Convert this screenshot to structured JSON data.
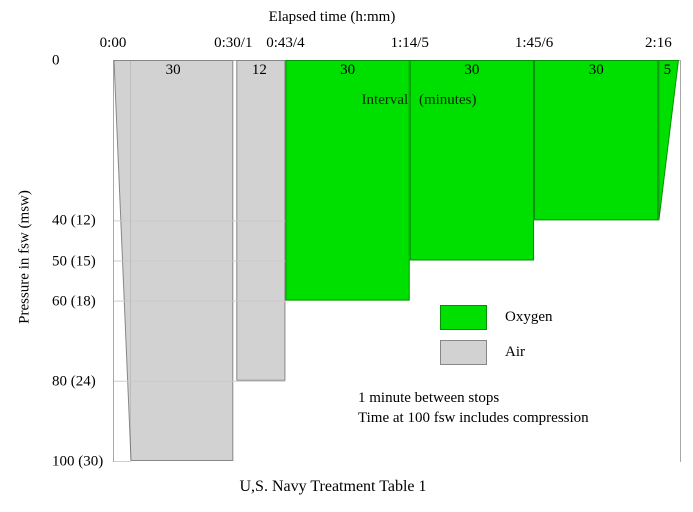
{
  "chart_data": {
    "type": "area",
    "title": "U,S. Navy Treatment Table 1",
    "xlabel": "Elapsed time (h:mm)",
    "ylabel": "Pressure in fsw (msw)",
    "interval_heading": "Interval (minutes)",
    "descent_minutes": 4.5,
    "x_axis": {
      "unit": "minutes",
      "range": [
        0,
        141
      ],
      "ticks": [
        {
          "label": "0:00",
          "min": 0
        },
        {
          "label": "0:30/1",
          "min": 30
        },
        {
          "label": "0:43/4",
          "min": 43
        },
        {
          "label": "1:14/5",
          "min": 74
        },
        {
          "label": "1:45/6",
          "min": 105
        },
        {
          "label": "2:16",
          "min": 136
        }
      ]
    },
    "y_axis": {
      "unit": "fsw",
      "range": [
        0,
        100
      ],
      "ticks": [
        {
          "label": "0",
          "fsw": 0
        },
        {
          "label": "40 (12)",
          "fsw": 40
        },
        {
          "label": "50 (15)",
          "fsw": 50
        },
        {
          "label": "60 (18)",
          "fsw": 60
        },
        {
          "label": "80 (24)",
          "fsw": 80
        },
        {
          "label": "100 (30)",
          "fsw": 100
        }
      ]
    },
    "segments": [
      {
        "gas": "air",
        "label": "30",
        "start_min": 0,
        "end_min": 30,
        "depth_fsw": 100,
        "shape": "descent-flat"
      },
      {
        "gas": "air",
        "label": "12",
        "start_min": 30,
        "end_min": 43,
        "depth_fsw": 80,
        "shape": "flat"
      },
      {
        "gas": "oxygen",
        "label": "30",
        "start_min": 43,
        "end_min": 74,
        "depth_fsw": 60,
        "shape": "flat"
      },
      {
        "gas": "oxygen",
        "label": "30",
        "start_min": 74,
        "end_min": 105,
        "depth_fsw": 50,
        "shape": "flat"
      },
      {
        "gas": "oxygen",
        "label": "30",
        "start_min": 105,
        "end_min": 136,
        "depth_fsw": 40,
        "shape": "flat"
      },
      {
        "gas": "oxygen",
        "label": "5",
        "start_min": 136,
        "end_min": 141,
        "depth_fsw": 40,
        "shape": "ascent"
      }
    ],
    "legend": [
      {
        "label": "Oxygen",
        "key": "oxygen",
        "color": "#00e000"
      },
      {
        "label": "Air",
        "key": "air",
        "color": "#d2d2d2"
      }
    ],
    "annotations": [
      "1 minute between stops",
      "Time at 100 fsw includes compression"
    ],
    "colors": {
      "oxygen": "#00e000",
      "oxygen_border": "#009000",
      "air": "#d2d2d2",
      "air_border": "#878787",
      "frame": "#a8a8a8",
      "grid": "#c9c9c9",
      "text": "#000000"
    }
  }
}
